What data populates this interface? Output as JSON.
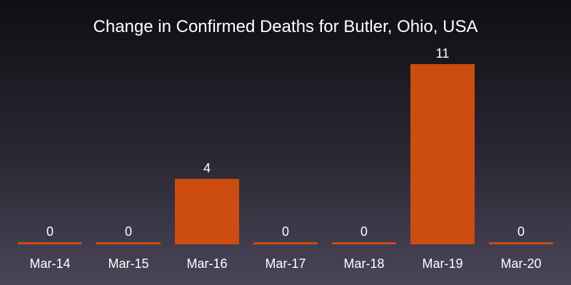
{
  "chart_data": {
    "type": "bar",
    "title": "Change in Confirmed Deaths for Butler, Ohio, USA",
    "xlabel": "",
    "ylabel": "",
    "categories": [
      "Mar-14",
      "Mar-15",
      "Mar-16",
      "Mar-17",
      "Mar-18",
      "Mar-19",
      "Mar-20"
    ],
    "values": [
      0,
      0,
      4,
      0,
      0,
      11,
      0
    ],
    "ylim": [
      0,
      11
    ],
    "grid": false,
    "legend": "none",
    "data_labels": true,
    "bar_color": "#cd4c0f",
    "text_color": "#ffffff"
  }
}
